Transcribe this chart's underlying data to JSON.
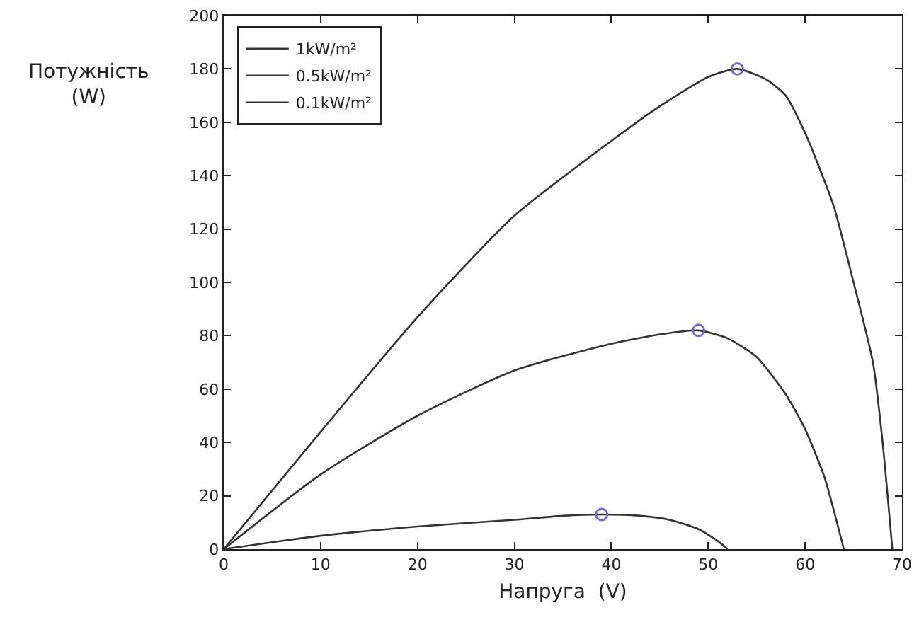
{
  "chart_data": {
    "type": "line",
    "xlabel": "Напруга  (V)",
    "ylabel": "Потужність\n(W)",
    "xlim": [
      0,
      70
    ],
    "ylim": [
      0,
      200
    ],
    "xticks": [
      0,
      10,
      20,
      30,
      40,
      50,
      60,
      70
    ],
    "yticks": [
      0,
      20,
      40,
      60,
      80,
      100,
      120,
      140,
      160,
      180,
      200
    ],
    "grid": false,
    "legend": "top left",
    "line_style": "solid",
    "marker": "none",
    "series": [
      {
        "name": "1kW/m²",
        "color": "#333333",
        "x": [
          0,
          10,
          20,
          30,
          40,
          45,
          50,
          53,
          56,
          58,
          60,
          62,
          63,
          65,
          67,
          68,
          69
        ],
        "values": [
          0,
          44,
          87,
          125,
          153,
          166,
          177,
          180,
          176,
          170,
          156,
          138,
          128,
          100,
          70,
          40,
          0
        ]
      },
      {
        "name": "0.5kW/m²",
        "color": "#333333",
        "x": [
          0,
          10,
          20,
          30,
          40,
          45,
          49,
          52,
          55,
          58,
          60,
          62,
          63,
          64
        ],
        "values": [
          0,
          28,
          50,
          67,
          77,
          80.5,
          82,
          79,
          72,
          58,
          45,
          27,
          14,
          0
        ]
      },
      {
        "name": "0.1kW/m²",
        "color": "#333333",
        "x": [
          0,
          10,
          20,
          30,
          35,
          39,
          43,
          46,
          49,
          51,
          52
        ],
        "values": [
          0,
          5,
          8.5,
          11,
          12.5,
          13,
          12.5,
          11,
          7.5,
          3,
          0
        ]
      },
      {
        "type": "scatter",
        "marker": "circle",
        "color": "#7b68c8",
        "x": [
          53,
          49,
          39
        ],
        "values": [
          180,
          82,
          13
        ]
      }
    ]
  }
}
